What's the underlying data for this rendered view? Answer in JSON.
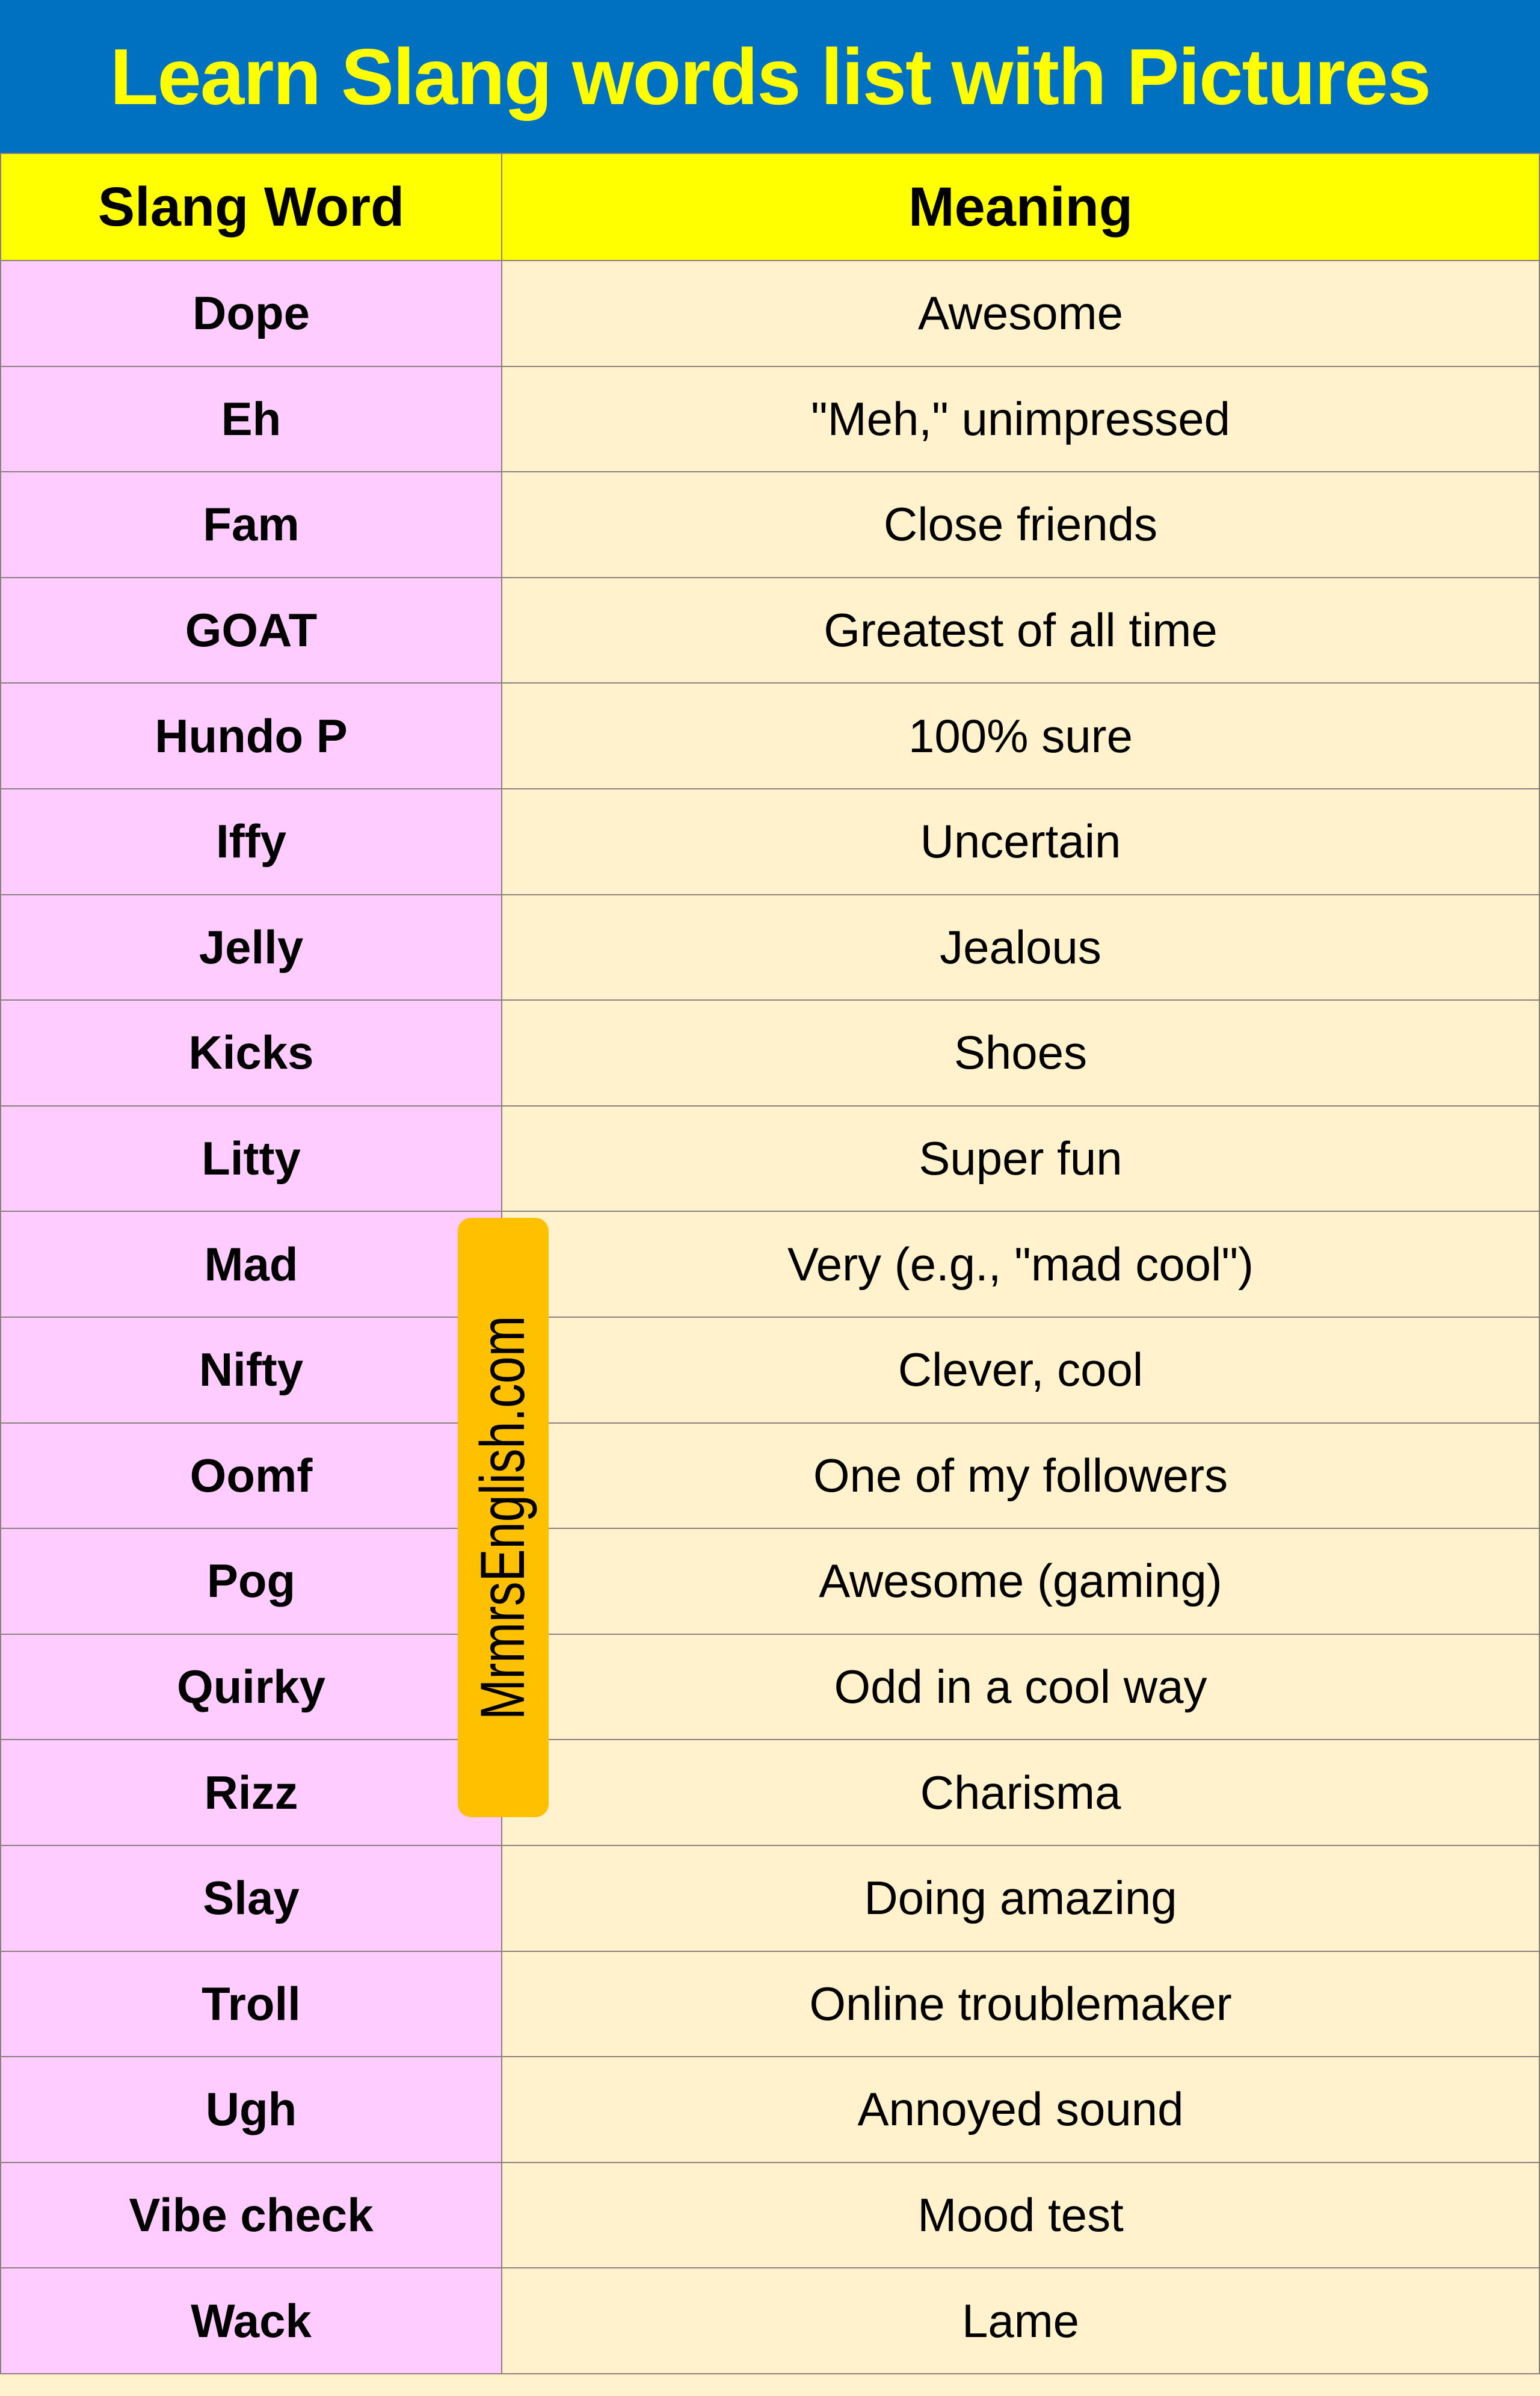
{
  "title": "Learn Slang words list with Pictures",
  "headers": {
    "word": "Slang Word",
    "meaning": "Meaning"
  },
  "rows": [
    {
      "word": "Dope",
      "meaning": "Awesome"
    },
    {
      "word": "Eh",
      "meaning": "\"Meh,\" unimpressed"
    },
    {
      "word": "Fam",
      "meaning": "Close friends"
    },
    {
      "word": "GOAT",
      "meaning": "Greatest of all time"
    },
    {
      "word": "Hundo P",
      "meaning": "100% sure"
    },
    {
      "word": "Iffy",
      "meaning": "Uncertain"
    },
    {
      "word": "Jelly",
      "meaning": "Jealous"
    },
    {
      "word": "Kicks",
      "meaning": "Shoes"
    },
    {
      "word": "Litty",
      "meaning": "Super fun"
    },
    {
      "word": "Mad",
      "meaning": "Very (e.g., \"mad cool\")"
    },
    {
      "word": "Nifty",
      "meaning": "Clever, cool"
    },
    {
      "word": "Oomf",
      "meaning": "One of my followers"
    },
    {
      "word": "Pog",
      "meaning": "Awesome (gaming)"
    },
    {
      "word": "Quirky",
      "meaning": "Odd in a cool way"
    },
    {
      "word": "Rizz",
      "meaning": "Charisma"
    },
    {
      "word": "Slay",
      "meaning": "Doing amazing"
    },
    {
      "word": "Troll",
      "meaning": "Online troublemaker"
    },
    {
      "word": "Ugh",
      "meaning": "Annoyed sound"
    },
    {
      "word": "Vibe check",
      "meaning": "Mood test"
    },
    {
      "word": "Wack",
      "meaning": "Lame"
    }
  ],
  "watermark": "MrmrsEnglish.com",
  "colors": {
    "title_bg": "#0070C0",
    "title_text": "#FFFF00",
    "header_bg": "#FFFF00",
    "word_bg": "#FFCCFF",
    "meaning_bg": "#FFF2CC",
    "watermark_bg": "#FFC000"
  }
}
